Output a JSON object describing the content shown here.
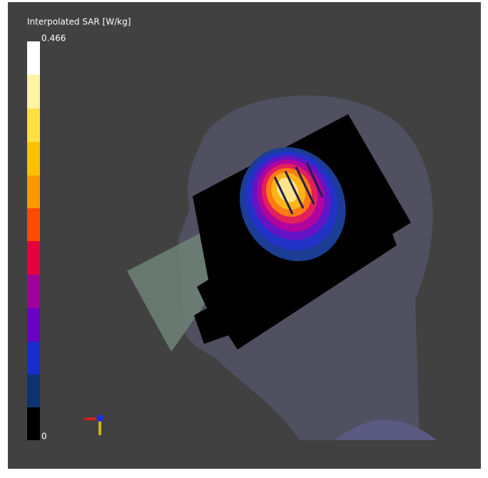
{
  "colorbar": {
    "title": "Interpolated SAR [W/kg]",
    "max_label": "0.466",
    "min_label": "0"
  }
}
